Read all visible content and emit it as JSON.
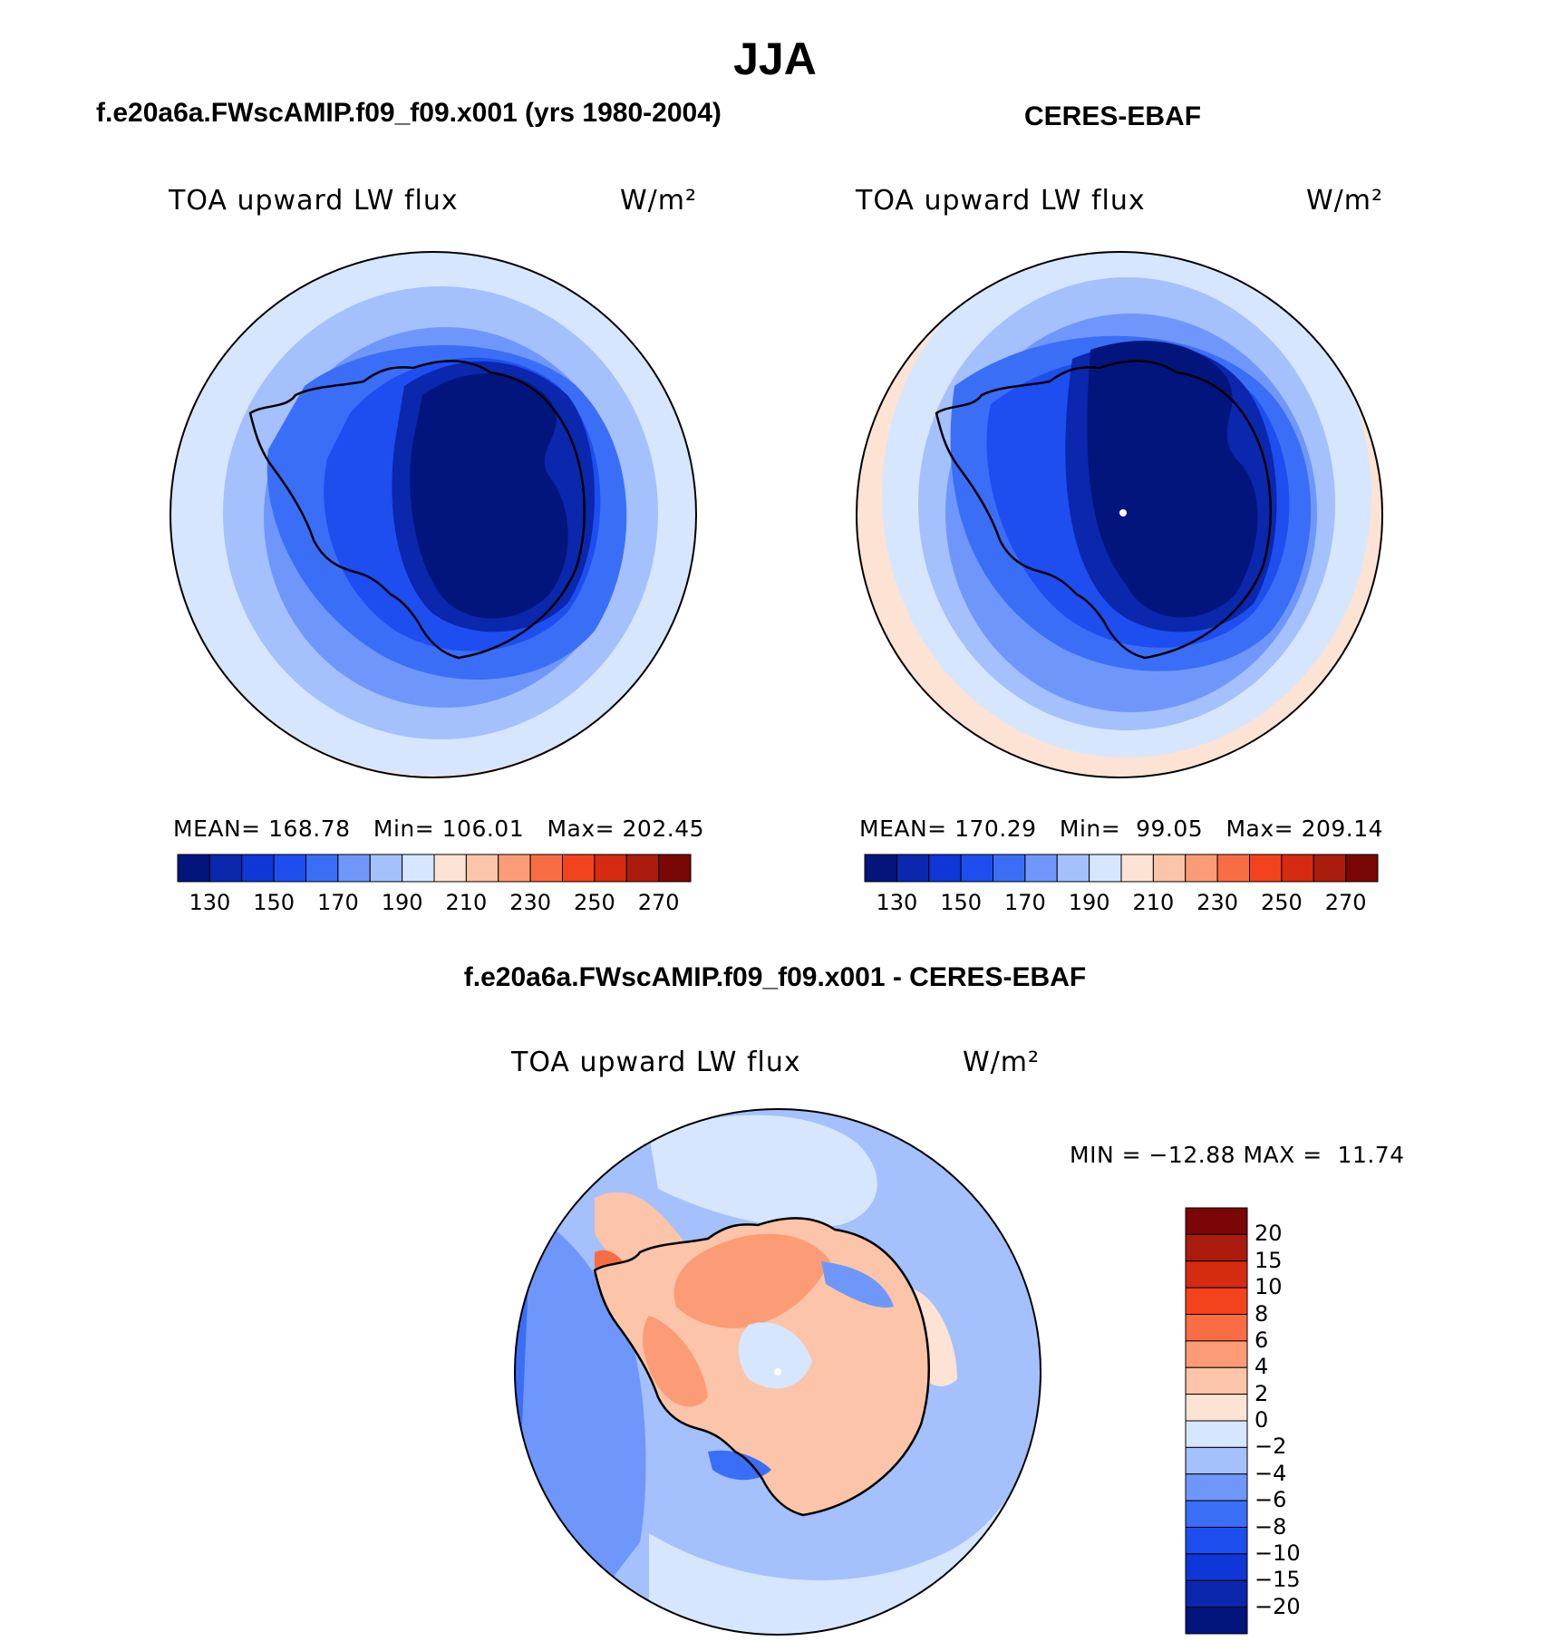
{
  "title": "JJA",
  "panels": [
    {
      "id": "model",
      "heading": "f.e20a6a.FWscAMIP.f09_f09.x001 (yrs 1980-2004)",
      "variable": "TOA upward LW flux",
      "units": "W/m²",
      "stats": "MEAN= 168.78   Min= 106.01   Max= 202.45"
    },
    {
      "id": "obs",
      "heading": "CERES-EBAF",
      "variable": "TOA upward LW flux",
      "units": "W/m²",
      "stats": "MEAN= 170.29   Min=  99.05   Max= 209.14"
    }
  ],
  "difference": {
    "heading": "f.e20a6a.FWscAMIP.f09_f09.x001 - CERES-EBAF",
    "variable": "TOA upward LW flux",
    "units": "W/m²",
    "minmax": "MIN = −12.88 MAX =  11.74"
  },
  "chart_data": [
    {
      "type": "heatmap",
      "title": "TOA upward LW flux (model, JJA, polar stereographic South Pole)",
      "units": "W/m²",
      "mean": 168.78,
      "min": 106.01,
      "max": 202.45,
      "colorbar_levels": [
        120,
        130,
        140,
        150,
        160,
        170,
        180,
        190,
        200,
        210,
        220,
        230,
        240,
        250,
        260,
        270,
        280
      ],
      "colorbar_tick_labels": [
        "130",
        "150",
        "170",
        "190",
        "210",
        "230",
        "250",
        "270"
      ],
      "colorbar_colors": [
        "#02157d",
        "#0a27ad",
        "#0f36d6",
        "#1e4ef0",
        "#3b6ef7",
        "#6f97fb",
        "#a4c0fd",
        "#d6e6fe",
        "#fde3d3",
        "#fcc4a8",
        "#fb9c77",
        "#f96d45",
        "#f2431d",
        "#d52b10",
        "#ab1c0c",
        "#7b0606"
      ]
    },
    {
      "type": "heatmap",
      "title": "TOA upward LW flux (CERES-EBAF, JJA, polar stereographic South Pole)",
      "units": "W/m²",
      "mean": 170.29,
      "min": 99.05,
      "max": 209.14,
      "colorbar_levels": [
        120,
        130,
        140,
        150,
        160,
        170,
        180,
        190,
        200,
        210,
        220,
        230,
        240,
        250,
        260,
        270,
        280
      ],
      "colorbar_tick_labels": [
        "130",
        "150",
        "170",
        "190",
        "210",
        "230",
        "250",
        "270"
      ],
      "colorbar_colors": [
        "#02157d",
        "#0a27ad",
        "#0f36d6",
        "#1e4ef0",
        "#3b6ef7",
        "#6f97fb",
        "#a4c0fd",
        "#d6e6fe",
        "#fde3d3",
        "#fcc4a8",
        "#fb9c77",
        "#f96d45",
        "#f2431d",
        "#d52b10",
        "#ab1c0c",
        "#7b0606"
      ]
    },
    {
      "type": "heatmap",
      "title": "TOA upward LW flux difference (model - CERES-EBAF)",
      "units": "W/m²",
      "min": -12.88,
      "max": 11.74,
      "colorbar_levels": [
        -25,
        -20,
        -15,
        -10,
        -8,
        -6,
        -4,
        -2,
        0,
        2,
        4,
        6,
        8,
        10,
        15,
        20,
        25
      ],
      "colorbar_tick_labels": [
        "20",
        "15",
        "10",
        "8",
        "6",
        "4",
        "2",
        "0",
        "−2",
        "−4",
        "−6",
        "−8",
        "−10",
        "−15",
        "−20"
      ],
      "colorbar_colors": [
        "#7b0606",
        "#ab1c0c",
        "#d52b10",
        "#f2431d",
        "#f96d45",
        "#fb9c77",
        "#fcc4a8",
        "#fde3d3",
        "#d6e6fe",
        "#a4c0fd",
        "#6f97fb",
        "#3b6ef7",
        "#1e4ef0",
        "#0f36d6",
        "#0a27ad",
        "#02157d"
      ]
    }
  ]
}
